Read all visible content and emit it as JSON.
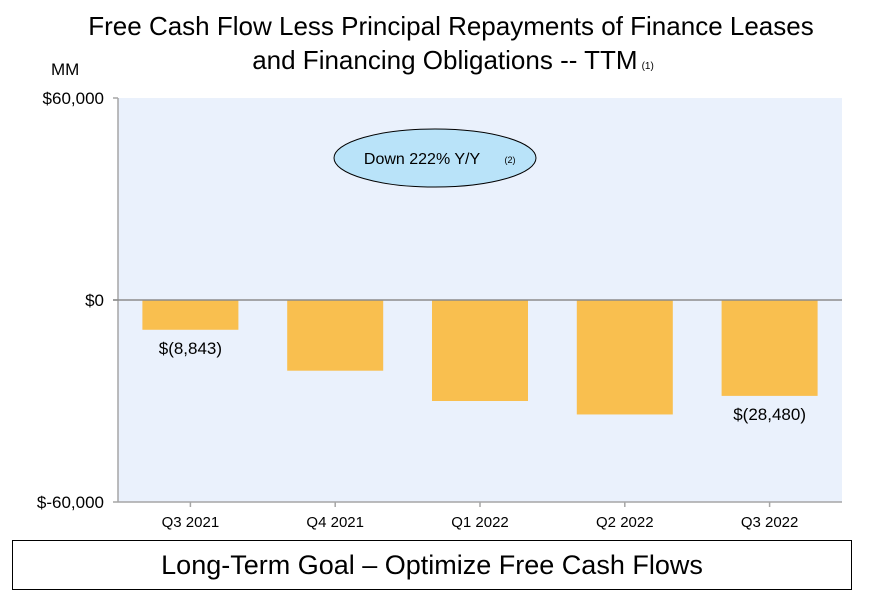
{
  "chart_data": {
    "type": "bar",
    "title": "Free Cash Flow Less Principal Repayments of Finance Leases and Financing Obligations -- TTM",
    "title_line1": "Free Cash Flow Less Principal Repayments of Finance Leases",
    "title_line2": "and Financing Obligations -- TTM",
    "title_footnote": "(1)",
    "ylabel": "MM",
    "xlabel": "",
    "categories": [
      "Q3 2021",
      "Q4 2021",
      "Q1 2022",
      "Q2 2022",
      "Q3 2022"
    ],
    "values": [
      -8843,
      -21000,
      -30000,
      -34000,
      -28480
    ],
    "data_labels": [
      "$(8,843)",
      "",
      "",
      "",
      "$(28,480)"
    ],
    "ylim": [
      -60000,
      60000
    ],
    "yticks": [
      60000,
      0,
      -60000
    ],
    "ytick_labels": [
      "$60,000",
      "$0",
      "$-60,000"
    ],
    "grid": false,
    "annotation": {
      "text": "Down 222% Y/Y",
      "footnote": "(2)"
    },
    "colors": {
      "bar": "#F9BF4F",
      "plot_bg": "#EAF1FC",
      "annotation_fill": "#B9E3F9",
      "axis": "#A6A6A6"
    }
  },
  "footer": {
    "goal": "Long-Term Goal – Optimize Free Cash Flows"
  }
}
